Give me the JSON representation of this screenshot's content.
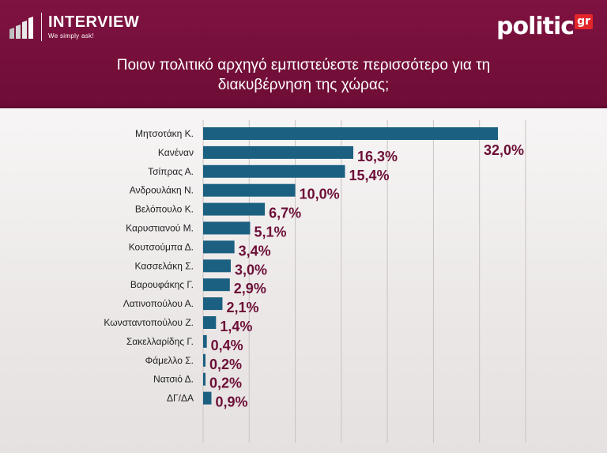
{
  "header": {
    "brand_left": "INTERVIEW",
    "brand_left_tagline": "We simply ask!",
    "brand_right": "politic",
    "brand_right_badge": "gr",
    "title_line1": "Ποιον πολιτικό αρχηγό εμπιστεύεστε περισσότερο για τη",
    "title_line2": "διακυβέρνηση της χώρας;"
  },
  "colors": {
    "header_bg": "#7e1240",
    "bar": "#1b6081",
    "value_label": "#6c0f37",
    "badge_red": "#e3262a"
  },
  "chart_data": {
    "type": "bar",
    "orientation": "horizontal",
    "title": "Ποιον πολιτικό αρχηγό εμπιστεύεστε περισσότερο για τη διακυβέρνηση της χώρας;",
    "categories": [
      "Μητσοτάκη Κ.",
      "Κανέναν",
      "Τσίπρας Α.",
      "Ανδρουλάκη Ν.",
      "Βελόπουλο Κ.",
      "Καρυστιανού Μ.",
      "Κουτσούμπα Δ.",
      "Κασσελάκη Σ.",
      "Βαρουφάκης Γ.",
      "Λατινοπούλου Α.",
      "Κωνσταντοπούλου Ζ.",
      "Σακελλαρίδης Γ.",
      "Φάμελλο Σ.",
      "Νατσιό Δ.",
      "ΔΓ/ΔΑ"
    ],
    "values": [
      32.0,
      16.3,
      15.4,
      10.0,
      6.7,
      5.1,
      3.4,
      3.0,
      2.9,
      2.1,
      1.4,
      0.4,
      0.2,
      0.2,
      0.9
    ],
    "value_labels": [
      "32,0%",
      "16,3%",
      "15,4%",
      "10,0%",
      "6,7%",
      "5,1%",
      "3,4%",
      "3,0%",
      "2,9%",
      "2,1%",
      "1,4%",
      "0,4%",
      "0,2%",
      "0,2%",
      "0,9%"
    ],
    "xlim": [
      0,
      35
    ],
    "grid": true,
    "legend": "none"
  }
}
